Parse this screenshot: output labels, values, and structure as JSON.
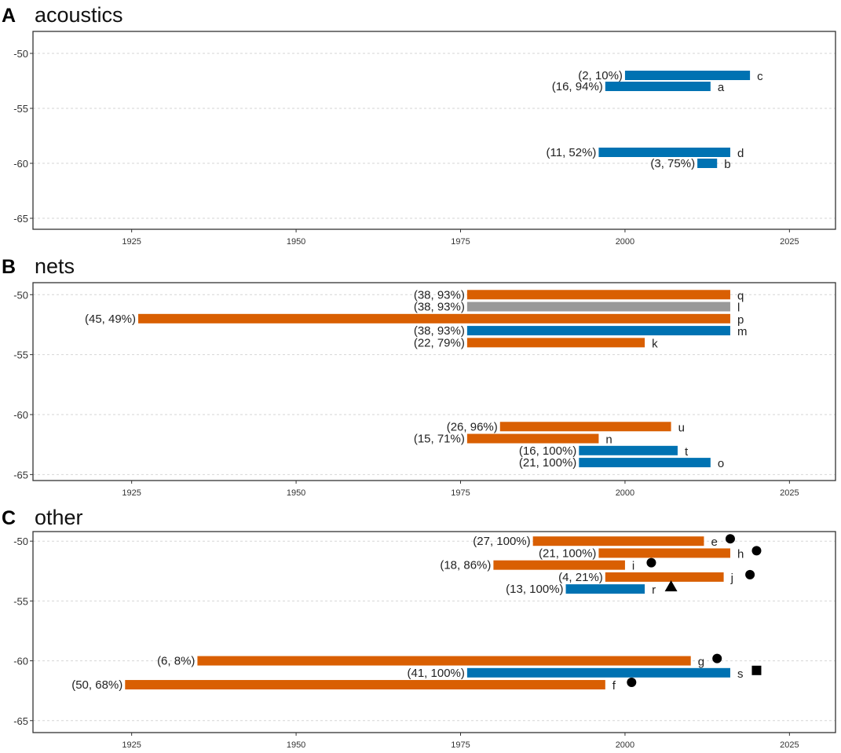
{
  "colors": {
    "orange": "#d95f02",
    "blue": "#0072b2",
    "gray": "#999999",
    "marker": "#000000"
  },
  "chart_data": [
    {
      "type": "bar",
      "orientation": "horizontal-range",
      "letter": "A",
      "title": "acoustics",
      "xlim": [
        1910,
        2032
      ],
      "ylim": [
        -66,
        -48
      ],
      "xticks": [
        "1925",
        "1950",
        "1975",
        "2000",
        "2025"
      ],
      "xtick_values": [
        1925,
        1950,
        1975,
        2000,
        2025
      ],
      "yticks": [
        "-50",
        "-55",
        "-60",
        "-65"
      ],
      "ytick_values": [
        -50,
        -55,
        -60,
        -65
      ],
      "series": [
        {
          "id": "c",
          "start": 2000,
          "end": 2019,
          "lat": -52,
          "label": "(2, 10%)",
          "color": "blue"
        },
        {
          "id": "a",
          "start": 1997,
          "end": 2013,
          "lat": -53,
          "label": "(16, 94%)",
          "color": "blue"
        },
        {
          "id": "d",
          "start": 1996,
          "end": 2016,
          "lat": -59,
          "label": "(11, 52%)",
          "color": "blue"
        },
        {
          "id": "b",
          "start": 2011,
          "end": 2014,
          "lat": -60,
          "label": "(3, 75%)",
          "color": "blue"
        }
      ]
    },
    {
      "type": "bar",
      "orientation": "horizontal-range",
      "letter": "B",
      "title": "nets",
      "xlim": [
        1910,
        2032
      ],
      "ylim": [
        -65.5,
        -49
      ],
      "xticks": [
        "1925",
        "1950",
        "1975",
        "2000",
        "2025"
      ],
      "xtick_values": [
        1925,
        1950,
        1975,
        2000,
        2025
      ],
      "yticks": [
        "-50",
        "-55",
        "-60",
        "-65"
      ],
      "ytick_values": [
        -50,
        -55,
        -60,
        -65
      ],
      "series": [
        {
          "id": "q",
          "start": 1976,
          "end": 2016,
          "lat": -50,
          "label": "(38, 93%)",
          "color": "orange"
        },
        {
          "id": "l",
          "start": 1976,
          "end": 2016,
          "lat": -51,
          "label": "(38, 93%)",
          "color": "gray"
        },
        {
          "id": "p",
          "start": 1926,
          "end": 2016,
          "lat": -52,
          "label": "(45, 49%)",
          "color": "orange"
        },
        {
          "id": "m",
          "start": 1976,
          "end": 2016,
          "lat": -53,
          "label": "(38, 93%)",
          "color": "blue"
        },
        {
          "id": "k",
          "start": 1976,
          "end": 2003,
          "lat": -54,
          "label": "(22, 79%)",
          "color": "orange"
        },
        {
          "id": "u",
          "start": 1981,
          "end": 2007,
          "lat": -61,
          "label": "(26, 96%)",
          "color": "orange"
        },
        {
          "id": "n",
          "start": 1976,
          "end": 1996,
          "lat": -62,
          "label": "(15, 71%)",
          "color": "orange"
        },
        {
          "id": "t",
          "start": 1993,
          "end": 2008,
          "lat": -63,
          "label": "(16, 100%)",
          "color": "blue"
        },
        {
          "id": "o",
          "start": 1993,
          "end": 2013,
          "lat": -64,
          "label": "(21, 100%)",
          "color": "blue"
        }
      ]
    },
    {
      "type": "bar",
      "orientation": "horizontal-range",
      "letter": "C",
      "title": "other",
      "xlim": [
        1910,
        2032
      ],
      "ylim": [
        -66,
        -49.2
      ],
      "xticks": [
        "1925",
        "1950",
        "1975",
        "2000",
        "2025"
      ],
      "xtick_values": [
        1925,
        1950,
        1975,
        2000,
        2025
      ],
      "yticks": [
        "-50",
        "-55",
        "-60",
        "-65"
      ],
      "ytick_values": [
        -50,
        -55,
        -60,
        -65
      ],
      "series": [
        {
          "id": "e",
          "start": 1986,
          "end": 2012,
          "lat": -50,
          "label": "(27, 100%)",
          "color": "orange",
          "marker": "circle",
          "marker_x": 2016
        },
        {
          "id": "h",
          "start": 1996,
          "end": 2016,
          "lat": -51,
          "label": "(21, 100%)",
          "color": "orange",
          "marker": "circle",
          "marker_x": 2020
        },
        {
          "id": "i",
          "start": 1980,
          "end": 2000,
          "lat": -52,
          "label": "(18, 86%)",
          "color": "orange",
          "marker": "circle",
          "marker_x": 2004
        },
        {
          "id": "j",
          "start": 1997,
          "end": 2015,
          "lat": -53,
          "label": "(4, 21%)",
          "color": "orange",
          "marker": "circle",
          "marker_x": 2019
        },
        {
          "id": "r",
          "start": 1991,
          "end": 2003,
          "lat": -54,
          "label": "(13, 100%)",
          "color": "blue",
          "marker": "triangle",
          "marker_x": 2007
        },
        {
          "id": "g",
          "start": 1935,
          "end": 2010,
          "lat": -60,
          "label": "(6, 8%)",
          "color": "orange",
          "marker": "circle",
          "marker_x": 2014
        },
        {
          "id": "s",
          "start": 1976,
          "end": 2016,
          "lat": -61,
          "label": "(41, 100%)",
          "color": "blue",
          "marker": "square",
          "marker_x": 2020
        },
        {
          "id": "f",
          "start": 1924,
          "end": 1997,
          "lat": -62,
          "label": "(50, 68%)",
          "color": "orange",
          "marker": "circle",
          "marker_x": 2001
        }
      ]
    }
  ]
}
